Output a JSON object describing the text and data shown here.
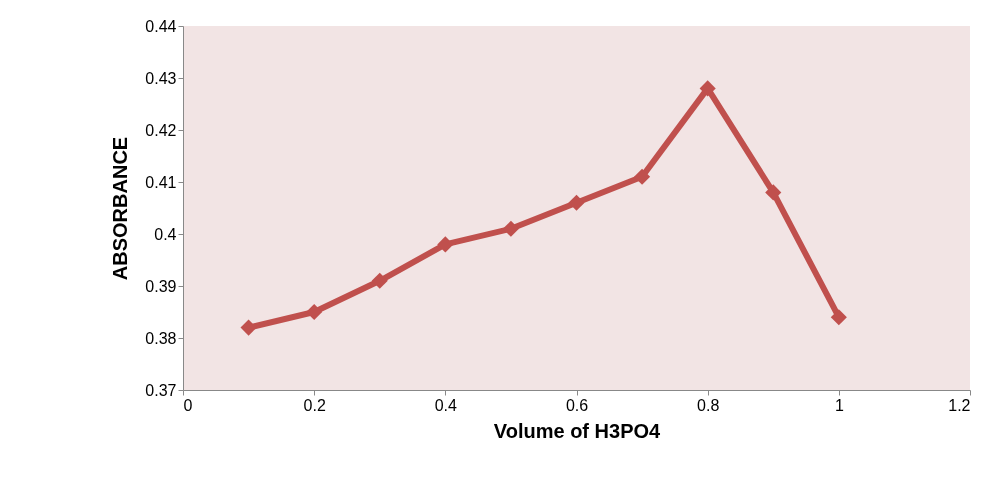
{
  "chart_data": {
    "type": "line",
    "xlabel": "Volume of H3PO4",
    "ylabel": "ABSORBANCE",
    "x": [
      0.1,
      0.2,
      0.3,
      0.4,
      0.5,
      0.6,
      0.7,
      0.8,
      0.9,
      1
    ],
    "series": [
      {
        "color": "#c0504d",
        "values": [
          0.382,
          0.385,
          0.391,
          0.398,
          0.401,
          0.406,
          0.411,
          0.428,
          0.408,
          0.384
        ]
      }
    ],
    "xlim": [
      0,
      1.2
    ],
    "xticks": [
      0,
      0.2,
      0.4,
      0.6,
      0.8,
      1,
      1.2
    ],
    "ylim": [
      0.37,
      0.44
    ],
    "yticks": [
      0.37,
      0.38,
      0.39,
      0.4,
      0.41,
      0.42,
      0.43,
      0.44
    ],
    "grid": false,
    "legend": false,
    "marker": "diamond",
    "line_style": "solid"
  }
}
